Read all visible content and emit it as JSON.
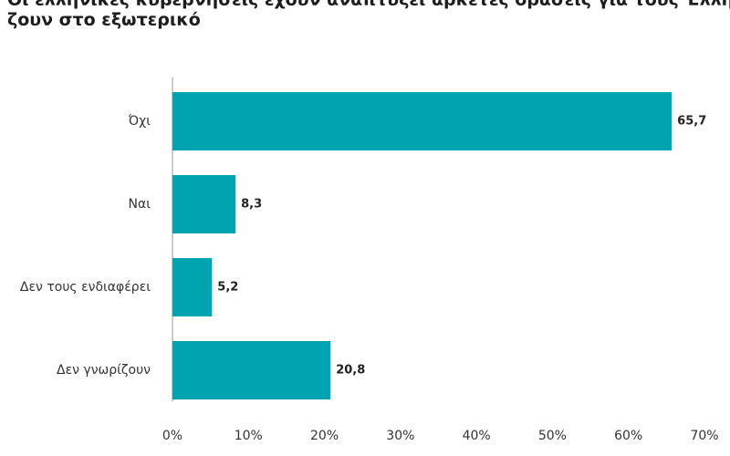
{
  "chart_data": {
    "type": "barh",
    "title": [
      "Οι ελληνικές κυβερνήσεις έχουν αναπτύξει αρκετές δράσεις για τους Έλληνες που",
      "ζουν στο εξωτερικό"
    ],
    "categories": [
      "Όχι",
      "Ναι",
      "Δεν τους ενδιαφέρει",
      "Δεν γνωρίζουν"
    ],
    "values": [
      65.7,
      8.3,
      5.2,
      20.8
    ],
    "value_labels": [
      "65,7",
      "8,3",
      "5,2",
      "20,8"
    ],
    "color": "#00a3b0",
    "xlim": [
      0,
      70
    ],
    "xticks": [
      {
        "value": 0,
        "label": "0%"
      },
      {
        "value": 10,
        "label": "10%"
      },
      {
        "value": 20,
        "label": "20%"
      },
      {
        "value": 30,
        "label": "30%"
      },
      {
        "value": 40,
        "label": "40%"
      },
      {
        "value": 50,
        "label": "50%"
      },
      {
        "value": 60,
        "label": "60%"
      },
      {
        "value": 70,
        "label": "70%"
      }
    ],
    "grid": false
  }
}
